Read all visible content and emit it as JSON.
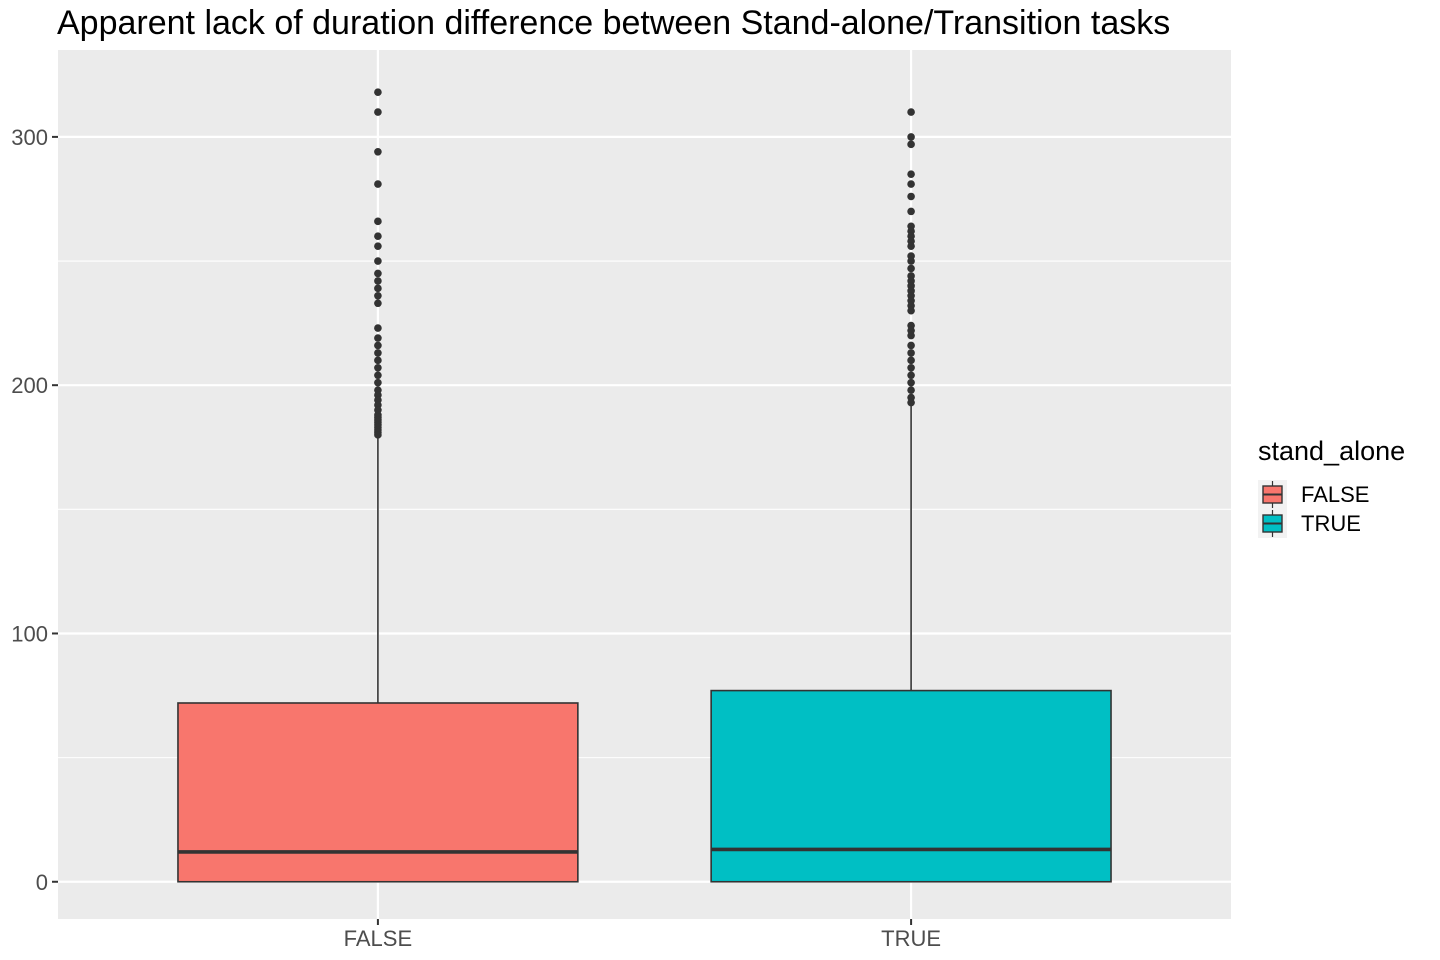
{
  "chart_data": {
    "type": "boxplot",
    "title": "Apparent lack of duration difference between Stand-alone/Transition tasks",
    "xlabel": "",
    "ylabel": "",
    "categories": [
      "FALSE",
      "TRUE"
    ],
    "ylim": [
      -15,
      335
    ],
    "y_ticks": [
      0,
      100,
      200,
      300
    ],
    "y_tick_labels": [
      "0",
      "100",
      "200",
      "300"
    ],
    "grid": true,
    "legend": {
      "title": "stand_alone",
      "placement": "right",
      "entries": [
        {
          "label": "FALSE",
          "color": "#F8766D"
        },
        {
          "label": "TRUE",
          "color": "#00BFC4"
        }
      ]
    },
    "series": [
      {
        "category": "FALSE",
        "color": "#F8766D",
        "min": 0,
        "q1": 0,
        "median": 12,
        "q3": 72,
        "whisker_high": 179,
        "outliers": [
          318,
          310,
          294,
          281,
          266,
          260,
          256,
          250,
          245,
          242,
          239,
          236,
          233,
          223,
          219,
          216,
          213,
          210,
          207,
          204,
          201,
          198,
          196,
          194,
          192,
          190,
          188,
          187,
          186,
          185,
          184,
          183,
          182,
          181,
          180
        ]
      },
      {
        "category": "TRUE",
        "color": "#00BFC4",
        "min": 0,
        "q1": 0,
        "median": 13,
        "q3": 77,
        "whisker_high": 192,
        "outliers": [
          310,
          300,
          297,
          285,
          281,
          276,
          270,
          264,
          262,
          260,
          258,
          256,
          252,
          250,
          247,
          244,
          242,
          240,
          238,
          236,
          234,
          232,
          230,
          224,
          222,
          220,
          216,
          213,
          210,
          207,
          204,
          201,
          198,
          195,
          193
        ]
      }
    ]
  }
}
